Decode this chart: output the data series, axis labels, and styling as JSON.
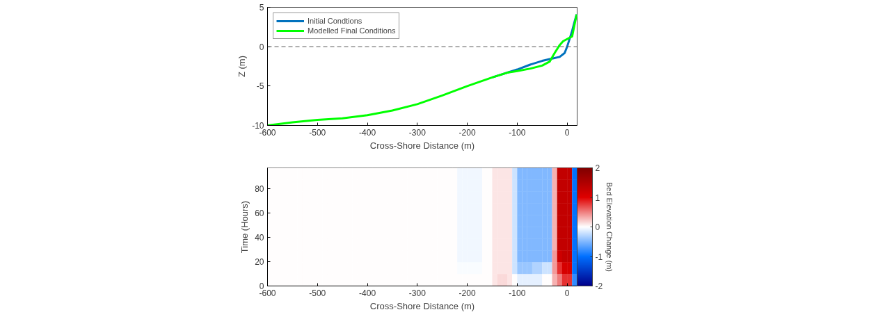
{
  "chart_data": [
    {
      "type": "line",
      "xlabel": "Cross-Shore Distance (m)",
      "ylabel": "Z (m)",
      "xlim": [
        -600,
        20
      ],
      "ylim": [
        -10,
        5
      ],
      "xticks": [
        -600,
        -500,
        -400,
        -300,
        -200,
        -100,
        0
      ],
      "yticks": [
        -10,
        -5,
        0,
        5
      ],
      "legend": "top left",
      "grid": false,
      "series": [
        {
          "name": "Initial Condtions",
          "color": "#0072bd",
          "x": [
            -150,
            -100,
            -75,
            -50,
            -30,
            -15,
            -5,
            0,
            5,
            10,
            15,
            19
          ],
          "values": [
            -3.9,
            -2.9,
            -2.3,
            -1.8,
            -1.5,
            -1.3,
            -0.8,
            0,
            1.0,
            2.0,
            3.2,
            4.1
          ]
        },
        {
          "name": "Modelled Final Conditions",
          "color": "#00ff00",
          "x": [
            -600,
            -550,
            -500,
            -450,
            -400,
            -350,
            -300,
            -250,
            -200,
            -150,
            -120,
            -100,
            -75,
            -50,
            -35,
            -25,
            -15,
            -8,
            10,
            19
          ],
          "values": [
            -10,
            -9.6,
            -9.3,
            -9.1,
            -8.7,
            -8.1,
            -7.3,
            -6.2,
            -5.0,
            -3.9,
            -3.3,
            -3.1,
            -2.8,
            -2.4,
            -1.9,
            -0.8,
            0.2,
            0.7,
            1.3,
            4.1
          ]
        }
      ],
      "ref_lines": [
        {
          "axis": "y",
          "value": 0,
          "label": null,
          "color": "#555555",
          "line_style": "dashed"
        }
      ]
    },
    {
      "type": "heatmap",
      "xlabel": "Cross-Shore Distance (m)",
      "ylabel": "Time (Hours)",
      "clabel": "Bed Elevation Change (m)",
      "xlim": [
        -600,
        20
      ],
      "ylim": [
        0,
        97
      ],
      "xticks": [
        -600,
        -500,
        -400,
        -300,
        -200,
        -100,
        0
      ],
      "yticks": [
        0,
        20,
        40,
        60,
        80
      ],
      "clim": [
        -2,
        2
      ],
      "cticks": [
        -2,
        -1,
        0,
        1,
        2
      ],
      "colors": [
        "#00008b",
        "#0070ff",
        "#ffffff",
        "#e00000",
        "#800000"
      ],
      "x": [
        -595,
        -585,
        -575,
        -565,
        -555,
        -545,
        -535,
        -525,
        -515,
        -505,
        -495,
        -485,
        -475,
        -465,
        -455,
        -445,
        -435,
        -425,
        -415,
        -405,
        -395,
        -385,
        -375,
        -365,
        -355,
        -345,
        -335,
        -325,
        -315,
        -305,
        -295,
        -285,
        -275,
        -265,
        -255,
        -245,
        -235,
        -225,
        -215,
        -205,
        -195,
        -185,
        -175,
        -165,
        -155,
        -145,
        -135,
        -125,
        -115,
        -105,
        -95,
        -85,
        -75,
        -65,
        -55,
        -45,
        -35,
        -25,
        -15,
        -5,
        5,
        15
      ],
      "y": [
        92.15,
        82.45,
        72.75,
        63.05,
        53.35,
        43.65,
        33.95,
        24.25,
        14.55,
        4.85
      ],
      "cells": [
        [
          0,
          0,
          0,
          0,
          0,
          0,
          0,
          0,
          0,
          0,
          0,
          0,
          0,
          0,
          0,
          0,
          0,
          0,
          0,
          0,
          0,
          0,
          0,
          0,
          0,
          0,
          0,
          0,
          0,
          0,
          0,
          0,
          0,
          0,
          0,
          0,
          0,
          0,
          -0.05,
          -0.05,
          -0.05,
          -0.05,
          -0.05,
          0,
          0,
          0.1,
          0.1,
          0.1,
          0.1,
          -0.2,
          -0.5,
          -0.5,
          -0.5,
          -0.5,
          -0.5,
          -0.5,
          -0.5,
          0.3,
          1.3,
          1.3,
          1.3,
          -1.0
        ],
        [
          0,
          0,
          0,
          0,
          0,
          0,
          0,
          0,
          0,
          0,
          0,
          0,
          0,
          0,
          0,
          0,
          0,
          0,
          0,
          0,
          0,
          0,
          0,
          0,
          0,
          0,
          0,
          0,
          0,
          0,
          0,
          0,
          0,
          0,
          0,
          0,
          0,
          0,
          -0.05,
          -0.05,
          -0.05,
          -0.05,
          -0.05,
          0,
          0,
          0.1,
          0.1,
          0.1,
          0.1,
          -0.2,
          -0.5,
          -0.5,
          -0.5,
          -0.5,
          -0.5,
          -0.5,
          -0.5,
          0.3,
          1.3,
          1.3,
          1.3,
          -1.0
        ],
        [
          0,
          0,
          0,
          0,
          0,
          0,
          0,
          0,
          0,
          0,
          0,
          0,
          0,
          0,
          0,
          0,
          0,
          0,
          0,
          0,
          0,
          0,
          0,
          0,
          0,
          0,
          0,
          0,
          0,
          0,
          0,
          0,
          0,
          0,
          0,
          0,
          0,
          0,
          -0.05,
          -0.05,
          -0.05,
          -0.05,
          -0.05,
          0,
          0,
          0.1,
          0.1,
          0.1,
          0.1,
          -0.2,
          -0.5,
          -0.5,
          -0.5,
          -0.5,
          -0.5,
          -0.5,
          -0.5,
          0.3,
          1.3,
          1.3,
          1.3,
          -1.0
        ],
        [
          0,
          0,
          0,
          0,
          0,
          0,
          0,
          0,
          0,
          0,
          0,
          0,
          0,
          0,
          0,
          0,
          0,
          0,
          0,
          0,
          0,
          0,
          0,
          0,
          0,
          0,
          0,
          0,
          0,
          0,
          0,
          0,
          0,
          0,
          0,
          0,
          0,
          0,
          -0.05,
          -0.05,
          -0.05,
          -0.05,
          -0.05,
          0,
          0,
          0.1,
          0.1,
          0.1,
          0.1,
          -0.2,
          -0.5,
          -0.5,
          -0.5,
          -0.5,
          -0.5,
          -0.5,
          -0.5,
          0.3,
          1.3,
          1.3,
          1.3,
          -1.0
        ],
        [
          0,
          0,
          0,
          0,
          0,
          0,
          0,
          0,
          0,
          0,
          0,
          0,
          0,
          0,
          0,
          0,
          0,
          0,
          0,
          0,
          0,
          0,
          0,
          0,
          0,
          0,
          0,
          0,
          0,
          0,
          0,
          0,
          0,
          0,
          0,
          0,
          0,
          0,
          -0.05,
          -0.05,
          -0.05,
          -0.05,
          -0.05,
          0,
          0,
          0.1,
          0.1,
          0.1,
          0.1,
          -0.2,
          -0.5,
          -0.5,
          -0.5,
          -0.5,
          -0.5,
          -0.5,
          -0.5,
          0.3,
          1.3,
          1.3,
          1.3,
          -1.0
        ],
        [
          0,
          0,
          0,
          0,
          0,
          0,
          0,
          0,
          0,
          0,
          0,
          0,
          0,
          0,
          0,
          0,
          0,
          0,
          0,
          0,
          0,
          0,
          0,
          0,
          0,
          0,
          0,
          0,
          0,
          0,
          0,
          0,
          0,
          0,
          0,
          0,
          0,
          0,
          -0.05,
          -0.05,
          -0.05,
          -0.05,
          -0.05,
          0,
          0,
          0.1,
          0.1,
          0.1,
          0.1,
          -0.2,
          -0.5,
          -0.5,
          -0.5,
          -0.5,
          -0.5,
          -0.5,
          -0.5,
          0.3,
          1.3,
          1.3,
          1.3,
          -1.0
        ],
        [
          0,
          0,
          0,
          0,
          0,
          0,
          0,
          0,
          0,
          0,
          0,
          0,
          0,
          0,
          0,
          0,
          0,
          0,
          0,
          0,
          0,
          0,
          0,
          0,
          0,
          0,
          0,
          0,
          0,
          0,
          0,
          0,
          0,
          0,
          0,
          0,
          0,
          0,
          -0.05,
          -0.05,
          -0.05,
          -0.05,
          -0.05,
          0,
          0,
          0.1,
          0.1,
          0.1,
          0.1,
          -0.2,
          -0.5,
          -0.5,
          -0.5,
          -0.5,
          -0.5,
          -0.5,
          -0.5,
          0.3,
          1.3,
          1.3,
          1.3,
          -1.0
        ],
        [
          0,
          0,
          0,
          0,
          0,
          0,
          0,
          0,
          0,
          0,
          0,
          0,
          0,
          0,
          0,
          0,
          0,
          0,
          0,
          0,
          0,
          0,
          0,
          0,
          0,
          0,
          0,
          0,
          0,
          0,
          0,
          0,
          0,
          0,
          0,
          0,
          0,
          0,
          -0.05,
          -0.05,
          -0.05,
          -0.05,
          -0.05,
          0,
          0,
          0.1,
          0.1,
          0.1,
          0.1,
          -0.2,
          -0.5,
          -0.5,
          -0.5,
          -0.5,
          -0.5,
          -0.5,
          -0.5,
          0.4,
          1.2,
          1.3,
          1.3,
          -1.0
        ],
        [
          0,
          0,
          0,
          0,
          0,
          0,
          0,
          0,
          0,
          0,
          0,
          0,
          0,
          0,
          0,
          0,
          0,
          0,
          0,
          0,
          0,
          0,
          0,
          0,
          0,
          0,
          0,
          0,
          0,
          0,
          0,
          0,
          0,
          0,
          0,
          0,
          0,
          0,
          -0.02,
          -0.02,
          -0.02,
          -0.02,
          -0.02,
          0,
          0,
          0.1,
          0.1,
          0.1,
          0.1,
          -0.2,
          -0.4,
          -0.4,
          -0.4,
          -0.3,
          -0.3,
          -0.2,
          -0.2,
          0.4,
          0.8,
          1.1,
          1.1,
          -1.0
        ],
        [
          0,
          0,
          0,
          0,
          0,
          0,
          0,
          0,
          0,
          0,
          0,
          0,
          0,
          0,
          0,
          0,
          0,
          0,
          0,
          0,
          0,
          0,
          0,
          0,
          0,
          0,
          0,
          0,
          0,
          0,
          0,
          0,
          0,
          0,
          0,
          0,
          0,
          0,
          0,
          0,
          0,
          0,
          0,
          0,
          0,
          0.1,
          0.15,
          0.15,
          0.1,
          0,
          -0.1,
          -0.1,
          -0.1,
          -0.1,
          -0.1,
          0,
          0,
          0.3,
          0.5,
          0.8,
          0.8,
          -0.8
        ]
      ]
    }
  ]
}
